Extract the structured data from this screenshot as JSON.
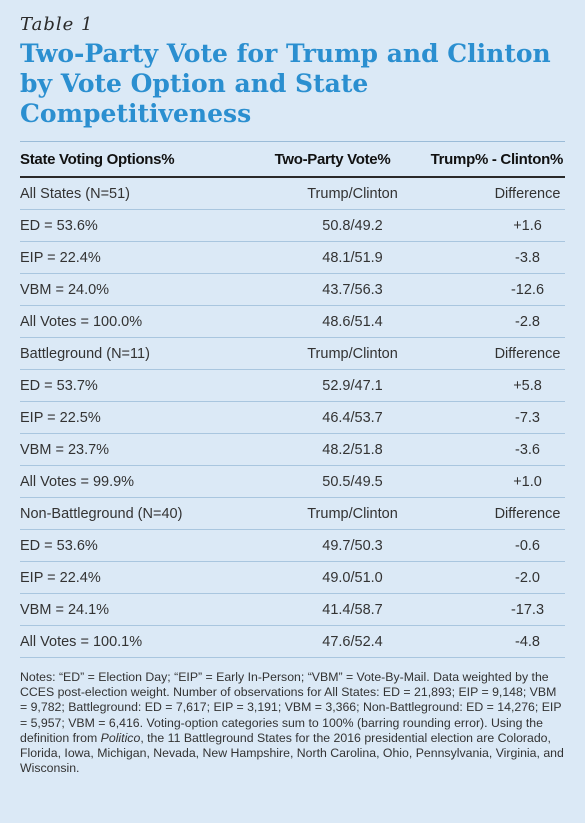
{
  "table_label": "Table 1",
  "title": "Two-Party Vote for Trump and Clinton by Vote Option and State Competitiveness",
  "headers": [
    "State Voting Options%",
    "Two-Party Vote%",
    "Trump% - Clinton%"
  ],
  "rows": [
    [
      "All States (N=51)",
      "Trump/Clinton",
      "Difference"
    ],
    [
      "ED = 53.6%",
      "50.8/49.2",
      "+1.6"
    ],
    [
      "EIP = 22.4%",
      "48.1/51.9",
      "-3.8"
    ],
    [
      "VBM = 24.0%",
      "43.7/56.3",
      "-12.6"
    ],
    [
      "All Votes = 100.0%",
      "48.6/51.4",
      "-2.8"
    ],
    [
      "Battleground (N=11)",
      "Trump/Clinton",
      "Difference"
    ],
    [
      "ED = 53.7%",
      "52.9/47.1",
      "+5.8"
    ],
    [
      "EIP = 22.5%",
      "46.4/53.7",
      "-7.3"
    ],
    [
      "VBM = 23.7%",
      "48.2/51.8",
      "-3.6"
    ],
    [
      "All Votes = 99.9%",
      "50.5/49.5",
      "+1.0"
    ],
    [
      "Non-Battleground (N=40)",
      "Trump/Clinton",
      "Difference"
    ],
    [
      "ED = 53.6%",
      "49.7/50.3",
      "-0.6"
    ],
    [
      "EIP = 22.4%",
      "49.0/51.0",
      "-2.0"
    ],
    [
      "VBM = 24.1%",
      "41.4/58.7",
      "-17.3"
    ],
    [
      "All Votes = 100.1%",
      "47.6/52.4",
      "-4.8"
    ]
  ],
  "notes": {
    "before_source": "Notes: “ED” = Election Day; “EIP” = Early In-Person; “VBM” = Vote-By-Mail. Data weighted by the CCES post-election weight. Number of observations for All States: ED = 21,893; EIP = 9,148; VBM = 9,782; Battleground: ED = 7,617; EIP = 3,191; VBM = 3,366; Non-Battleground: ED = 14,276; EIP = 5,957; VBM = 6,416. Voting-option categories sum to 100% (barring rounding error). Using the definition from ",
    "source": "Politico",
    "after_source": ", the 11 Battleground States for the 2016 presidential election are Colorado, Florida, Iowa, Michigan, Nevada, New Hampshire, North Carolina, Ohio, Pennsylvania, Virginia, and Wisconsin."
  },
  "colors": {
    "background": "#dbe9f6",
    "title": "#2b8fd0",
    "rule": "#a9c6df"
  }
}
